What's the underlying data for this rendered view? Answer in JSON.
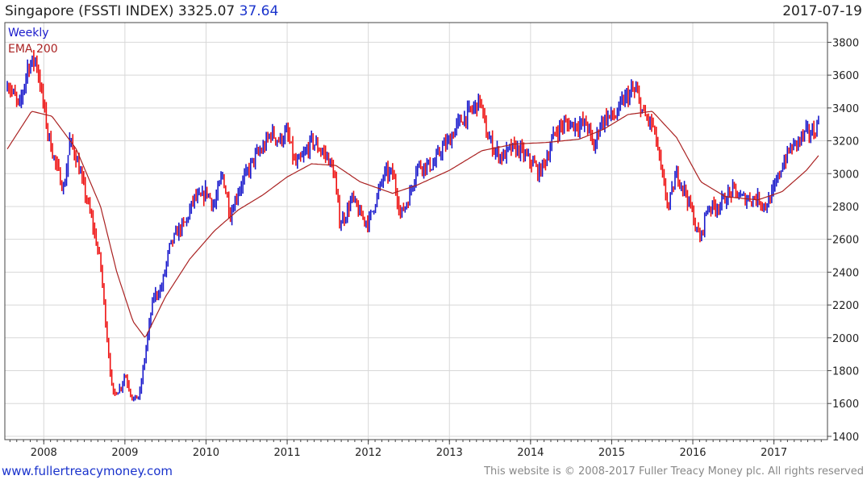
{
  "header": {
    "instrument": "Singapore (FSSTI INDEX)",
    "last": "3325.07",
    "change": "37.64",
    "date": "2017-07-19"
  },
  "footer": {
    "site": "www.fullertreacymoney.com",
    "copyright": "This website is © 2008-2017 Fuller Treacy Money plc. All rights reserved"
  },
  "chart_data": {
    "type": "line",
    "legend": [
      "Weekly",
      "EMA 200"
    ],
    "legend_placement": "top-left",
    "colors": {
      "up": "#1a1acc",
      "down": "#ee1111",
      "ema": "#aa2222",
      "grid": "#d8d8d8"
    },
    "x_tick_labels": [
      "2008",
      "2009",
      "2010",
      "2011",
      "2012",
      "2013",
      "2014",
      "2015",
      "2016",
      "2017"
    ],
    "y_tick_labels": [
      "1400",
      "1600",
      "1800",
      "2000",
      "2200",
      "2400",
      "2600",
      "2800",
      "3000",
      "3200",
      "3400",
      "3600",
      "3800"
    ],
    "ylim": [
      1380,
      3920
    ],
    "xlim": [
      2007.52,
      2017.66
    ],
    "grid": true,
    "price_anchors": {
      "t": [
        2007.55,
        2007.7,
        2007.8,
        2007.9,
        2007.97,
        2008.05,
        2008.15,
        2008.25,
        2008.32,
        2008.4,
        2008.5,
        2008.6,
        2008.7,
        2008.78,
        2008.85,
        2008.95,
        2009.0,
        2009.1,
        2009.18,
        2009.25,
        2009.35,
        2009.45,
        2009.55,
        2009.65,
        2009.75,
        2009.85,
        2009.95,
        2010.0,
        2010.1,
        2010.2,
        2010.3,
        2010.4,
        2010.5,
        2010.6,
        2010.7,
        2010.8,
        2010.9,
        2011.0,
        2011.1,
        2011.2,
        2011.3,
        2011.4,
        2011.5,
        2011.58,
        2011.65,
        2011.72,
        2011.8,
        2011.9,
        2012.0,
        2012.1,
        2012.2,
        2012.3,
        2012.4,
        2012.5,
        2012.6,
        2012.7,
        2012.8,
        2012.9,
        2013.0,
        2013.1,
        2013.2,
        2013.3,
        2013.38,
        2013.45,
        2013.55,
        2013.65,
        2013.75,
        2013.85,
        2013.95,
        2014.05,
        2014.1,
        2014.2,
        2014.3,
        2014.4,
        2014.5,
        2014.6,
        2014.7,
        2014.78,
        2014.85,
        2014.95,
        2015.05,
        2015.15,
        2015.25,
        2015.3,
        2015.4,
        2015.5,
        2015.55,
        2015.6,
        2015.65,
        2015.7,
        2015.8,
        2015.9,
        2016.0,
        2016.05,
        2016.1,
        2016.15,
        2016.2,
        2016.3,
        2016.4,
        2016.5,
        2016.6,
        2016.7,
        2016.8,
        2016.9,
        2017.0,
        2017.1,
        2017.2,
        2017.3,
        2017.4,
        2017.5,
        2017.55
      ],
      "close": [
        3560,
        3400,
        3650,
        3700,
        3500,
        3250,
        3050,
        2900,
        3200,
        3100,
        2900,
        2700,
        2450,
        2000,
        1650,
        1700,
        1780,
        1620,
        1650,
        1900,
        2250,
        2300,
        2550,
        2650,
        2700,
        2850,
        2850,
        2900,
        2800,
        3000,
        2750,
        2900,
        3000,
        3100,
        3150,
        3250,
        3200,
        3250,
        3050,
        3100,
        3200,
        3150,
        3100,
        3000,
        2700,
        2750,
        2850,
        2750,
        2700,
        2850,
        3000,
        3000,
        2750,
        2850,
        3050,
        3050,
        3050,
        3150,
        3200,
        3300,
        3350,
        3400,
        3450,
        3250,
        3150,
        3100,
        3150,
        3150,
        3100,
        3050,
        3000,
        3100,
        3250,
        3300,
        3300,
        3300,
        3300,
        3150,
        3300,
        3350,
        3350,
        3450,
        3500,
        3500,
        3350,
        3300,
        3200,
        3050,
        2900,
        2800,
        3000,
        2900,
        2750,
        2650,
        2600,
        2750,
        2800,
        2800,
        2850,
        2900,
        2850,
        2850,
        2850,
        2800,
        2900,
        3050,
        3150,
        3200,
        3250,
        3250,
        3325
      ]
    },
    "ema_anchors": {
      "t": [
        2007.55,
        2007.85,
        2008.1,
        2008.4,
        2008.7,
        2008.9,
        2009.1,
        2009.25,
        2009.5,
        2009.8,
        2010.1,
        2010.4,
        2010.7,
        2011.0,
        2011.3,
        2011.6,
        2011.9,
        2012.3,
        2012.6,
        2013.0,
        2013.4,
        2013.8,
        2014.2,
        2014.6,
        2014.9,
        2015.2,
        2015.5,
        2015.8,
        2016.1,
        2016.4,
        2016.8,
        2017.1,
        2017.4,
        2017.55
      ],
      "value": [
        3150,
        3380,
        3350,
        3150,
        2800,
        2400,
        2100,
        2000,
        2250,
        2480,
        2650,
        2780,
        2870,
        2980,
        3060,
        3050,
        2950,
        2880,
        2930,
        3020,
        3140,
        3180,
        3190,
        3210,
        3270,
        3360,
        3380,
        3220,
        2950,
        2860,
        2840,
        2890,
        3020,
        3110
      ]
    }
  }
}
